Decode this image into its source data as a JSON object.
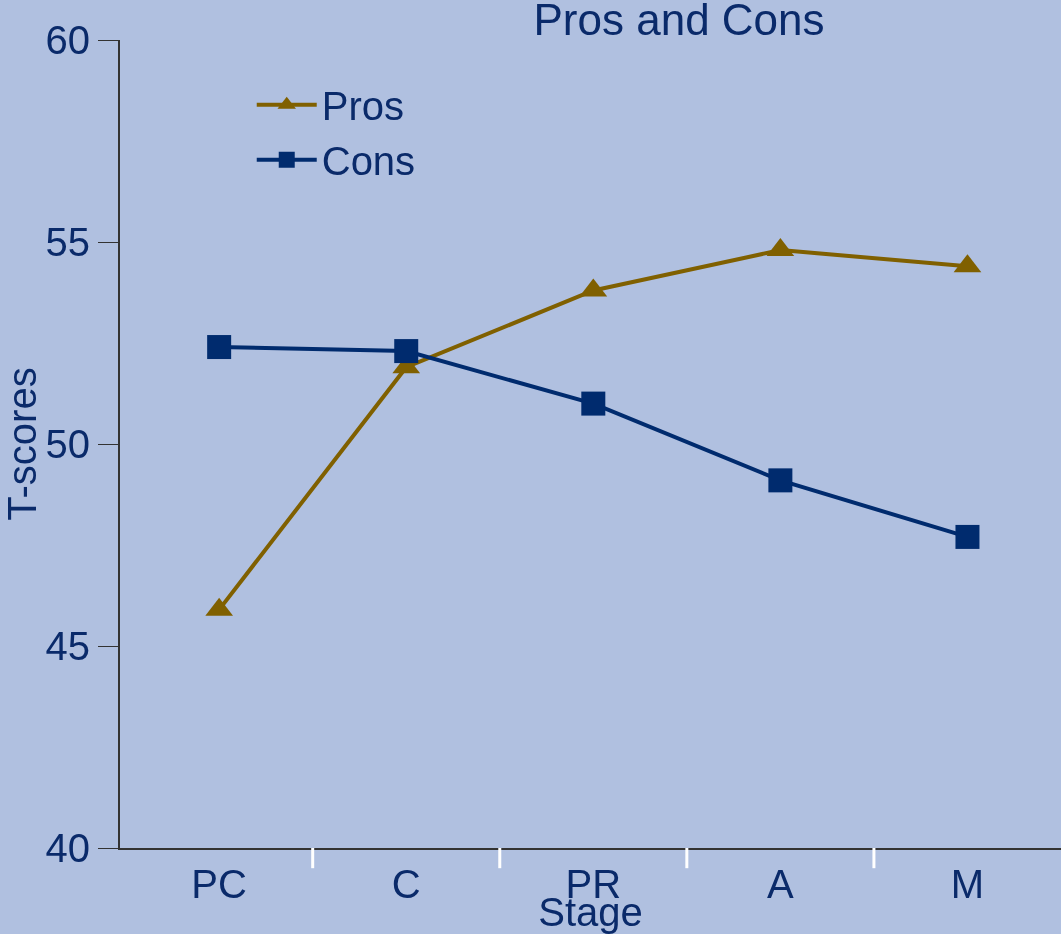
{
  "chart_data": {
    "type": "line",
    "title": "Pros and Cons",
    "xlabel": "Stage",
    "ylabel": "T-scores",
    "categories": [
      "PC",
      "C",
      "PR",
      "A",
      "M"
    ],
    "series": [
      {
        "name": "Pros",
        "color": "#806000",
        "marker": "triangle",
        "values": [
          45.9,
          51.9,
          53.8,
          54.8,
          54.4
        ]
      },
      {
        "name": "Cons",
        "color": "#002b6e",
        "marker": "square",
        "values": [
          52.4,
          52.3,
          51.0,
          49.1,
          47.7
        ]
      }
    ],
    "ylim": [
      40,
      60
    ],
    "yticks": [
      40,
      45,
      50,
      55,
      60
    ],
    "grid": false,
    "legend": "top left",
    "line_style": "solid"
  }
}
